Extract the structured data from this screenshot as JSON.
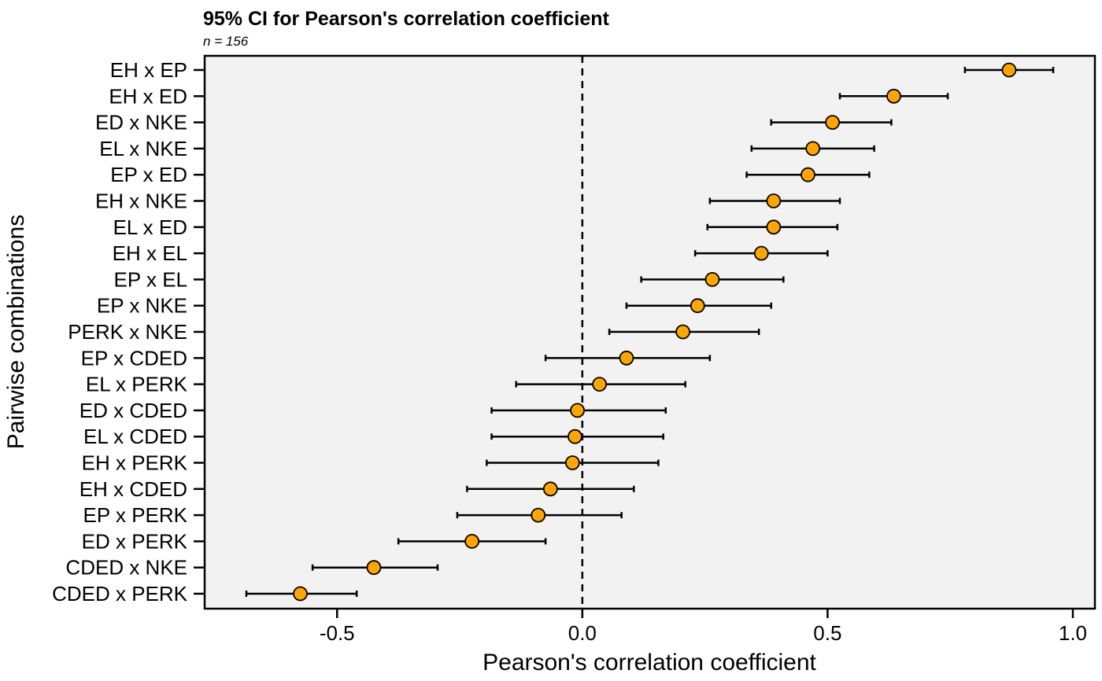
{
  "chart_data": {
    "type": "forest",
    "title": "95% CI for Pearson's correlation coefficient",
    "subtitle_label": "n",
    "subtitle_eq": " = ",
    "subtitle_value": "156",
    "xlabel": "Pearson's correlation coefficient",
    "ylabel": "Pairwise combinations",
    "xlim": [
      -0.77,
      1.045
    ],
    "xticks": [
      -0.5,
      0.0,
      0.5,
      1.0
    ],
    "xtick_labels": [
      "-0.5",
      "0.0",
      "0.5",
      "1.0"
    ],
    "reference_line": 0.0,
    "colors": {
      "point_fill": "#FFA500",
      "point_stroke": "#000000",
      "panel_bg": "#F2F2F2",
      "line": "#000000"
    },
    "rows": [
      {
        "label": "EH x EP",
        "estimate": 0.87,
        "ci_low": 0.78,
        "ci_high": 0.96
      },
      {
        "label": "EH x ED",
        "estimate": 0.635,
        "ci_low": 0.525,
        "ci_high": 0.745
      },
      {
        "label": "ED x NKE",
        "estimate": 0.51,
        "ci_low": 0.385,
        "ci_high": 0.63
      },
      {
        "label": "EL x NKE",
        "estimate": 0.47,
        "ci_low": 0.345,
        "ci_high": 0.595
      },
      {
        "label": "EP x ED",
        "estimate": 0.46,
        "ci_low": 0.335,
        "ci_high": 0.585
      },
      {
        "label": "EH x NKE",
        "estimate": 0.39,
        "ci_low": 0.26,
        "ci_high": 0.525
      },
      {
        "label": "EL x ED",
        "estimate": 0.39,
        "ci_low": 0.255,
        "ci_high": 0.52
      },
      {
        "label": "EH x EL",
        "estimate": 0.365,
        "ci_low": 0.23,
        "ci_high": 0.5
      },
      {
        "label": "EP x EL",
        "estimate": 0.265,
        "ci_low": 0.12,
        "ci_high": 0.41
      },
      {
        "label": "EP x NKE",
        "estimate": 0.235,
        "ci_low": 0.09,
        "ci_high": 0.385
      },
      {
        "label": "PERK x NKE",
        "estimate": 0.205,
        "ci_low": 0.055,
        "ci_high": 0.36
      },
      {
        "label": "EP x CDED",
        "estimate": 0.09,
        "ci_low": -0.075,
        "ci_high": 0.26
      },
      {
        "label": "EL x PERK",
        "estimate": 0.035,
        "ci_low": -0.135,
        "ci_high": 0.21
      },
      {
        "label": "ED x CDED",
        "estimate": -0.01,
        "ci_low": -0.185,
        "ci_high": 0.17
      },
      {
        "label": "EL x CDED",
        "estimate": -0.015,
        "ci_low": -0.185,
        "ci_high": 0.165
      },
      {
        "label": "EH x PERK",
        "estimate": -0.02,
        "ci_low": -0.195,
        "ci_high": 0.155
      },
      {
        "label": "EH x CDED",
        "estimate": -0.065,
        "ci_low": -0.235,
        "ci_high": 0.105
      },
      {
        "label": "EP x PERK",
        "estimate": -0.09,
        "ci_low": -0.255,
        "ci_high": 0.08
      },
      {
        "label": "ED x PERK",
        "estimate": -0.225,
        "ci_low": -0.375,
        "ci_high": -0.075
      },
      {
        "label": "CDED x NKE",
        "estimate": -0.425,
        "ci_low": -0.55,
        "ci_high": -0.295
      },
      {
        "label": "CDED x PERK",
        "estimate": -0.575,
        "ci_low": -0.685,
        "ci_high": -0.46
      }
    ]
  }
}
